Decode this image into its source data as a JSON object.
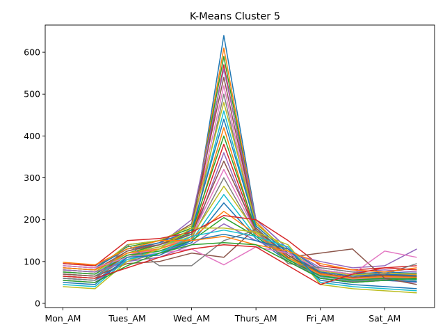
{
  "chart_data": {
    "type": "line",
    "title": "K-Means Cluster 5",
    "xlabel": "",
    "ylabel": "",
    "x": [
      0,
      1,
      2,
      3,
      4,
      5,
      6,
      7,
      8,
      9,
      10,
      11
    ],
    "x_tick_positions": [
      0,
      2,
      4,
      6,
      8,
      10
    ],
    "x_tick_labels": [
      "Mon_AM",
      "Tues_AM",
      "Wed_AM",
      "Thurs_AM",
      "Fri_AM",
      "Sat_AM"
    ],
    "xlim": [
      -0.55,
      11.55
    ],
    "ylim": [
      -10,
      665
    ],
    "y_ticks": [
      0,
      100,
      200,
      300,
      400,
      500,
      600
    ],
    "grid": false,
    "legend": "none",
    "colors": [
      "#1f77b4",
      "#ff7f0e",
      "#2ca02c",
      "#d62728",
      "#9467bd",
      "#8c564b",
      "#e377c2",
      "#7f7f7f",
      "#bcbd22",
      "#17becf"
    ],
    "series": [
      {
        "values": [
          85,
          80,
          140,
          150,
          165,
          640,
          200,
          130,
          80,
          70,
          75,
          72
        ]
      },
      {
        "values": [
          75,
          70,
          120,
          140,
          175,
          610,
          195,
          120,
          75,
          65,
          70,
          68
        ]
      },
      {
        "values": [
          90,
          85,
          135,
          150,
          180,
          590,
          190,
          125,
          70,
          60,
          65,
          60
        ]
      },
      {
        "values": [
          65,
          60,
          110,
          130,
          160,
          570,
          180,
          115,
          65,
          55,
          60,
          58
        ]
      },
      {
        "values": [
          95,
          90,
          130,
          140,
          200,
          560,
          200,
          130,
          85,
          75,
          80,
          75
        ]
      },
      {
        "values": [
          80,
          75,
          125,
          145,
          190,
          540,
          185,
          120,
          72,
          62,
          68,
          65
        ]
      },
      {
        "values": [
          70,
          65,
          115,
          135,
          170,
          520,
          175,
          110,
          68,
          58,
          62,
          60
        ]
      },
      {
        "values": [
          60,
          55,
          100,
          120,
          155,
          500,
          170,
          105,
          60,
          52,
          55,
          52
        ]
      },
      {
        "values": [
          85,
          80,
          140,
          150,
          185,
          480,
          190,
          125,
          78,
          68,
          72,
          70
        ]
      },
      {
        "values": [
          75,
          70,
          120,
          135,
          165,
          460,
          180,
          115,
          70,
          60,
          65,
          62
        ]
      },
      {
        "values": [
          90,
          85,
          130,
          145,
          175,
          440,
          185,
          120,
          75,
          65,
          70,
          66
        ]
      },
      {
        "values": [
          65,
          60,
          110,
          130,
          160,
          420,
          170,
          110,
          65,
          55,
          60,
          56
        ]
      },
      {
        "values": [
          80,
          75,
          120,
          140,
          170,
          400,
          175,
          115,
          70,
          60,
          65,
          62
        ]
      },
      {
        "values": [
          70,
          65,
          115,
          130,
          160,
          380,
          170,
          110,
          66,
          56,
          60,
          58
        ]
      },
      {
        "values": [
          55,
          50,
          105,
          120,
          150,
          360,
          165,
          105,
          60,
          50,
          55,
          50
        ]
      },
      {
        "values": [
          85,
          80,
          125,
          140,
          165,
          340,
          175,
          115,
          72,
          62,
          66,
          64
        ]
      },
      {
        "values": [
          75,
          70,
          115,
          130,
          160,
          320,
          170,
          110,
          68,
          58,
          62,
          60
        ]
      },
      {
        "values": [
          65,
          60,
          110,
          125,
          155,
          300,
          165,
          105,
          64,
          54,
          58,
          55
        ]
      },
      {
        "values": [
          80,
          75,
          120,
          135,
          160,
          280,
          170,
          110,
          70,
          60,
          64,
          62
        ]
      },
      {
        "values": [
          70,
          65,
          110,
          125,
          150,
          260,
          160,
          105,
          65,
          55,
          60,
          56
        ]
      },
      {
        "values": [
          60,
          55,
          105,
          120,
          145,
          240,
          155,
          100,
          60,
          50,
          55,
          52
        ]
      },
      {
        "values": [
          85,
          80,
          120,
          130,
          155,
          220,
          165,
          108,
          70,
          60,
          64,
          62
        ]
      },
      {
        "values": [
          75,
          70,
          115,
          125,
          150,
          205,
          160,
          104,
          66,
          56,
          60,
          58
        ]
      },
      {
        "values": [
          95,
          90,
          150,
          155,
          170,
          210,
          200,
          150,
          90,
          80,
          85,
          90
        ]
      },
      {
        "values": [
          80,
          75,
          100,
          110,
          140,
          190,
          150,
          120,
          100,
          85,
          90,
          130
        ]
      },
      {
        "values": [
          70,
          65,
          95,
          100,
          120,
          110,
          180,
          110,
          120,
          130,
          60,
          45
        ]
      },
      {
        "values": [
          90,
          85,
          110,
          120,
          130,
          92,
          135,
          120,
          80,
          70,
          125,
          110
        ]
      },
      {
        "values": [
          60,
          55,
          140,
          90,
          90,
          150,
          175,
          95,
          85,
          75,
          70,
          95
        ]
      },
      {
        "values": [
          40,
          35,
          100,
          130,
          180,
          180,
          170,
          140,
          45,
          35,
          30,
          25
        ]
      },
      {
        "values": [
          45,
          40,
          105,
          120,
          160,
          175,
          160,
          135,
          50,
          40,
          35,
          30
        ]
      },
      {
        "values": [
          50,
          45,
          110,
          115,
          150,
          165,
          150,
          130,
          55,
          45,
          40,
          35
        ]
      },
      {
        "values": [
          98,
          92,
          130,
          150,
          150,
          160,
          140,
          125,
          95,
          80,
          75,
          85
        ]
      },
      {
        "values": [
          55,
          50,
          90,
          120,
          140,
          145,
          140,
          100,
          60,
          50,
          55,
          60
        ]
      },
      {
        "values": [
          65,
          60,
          85,
          110,
          130,
          140,
          135,
          90,
          45,
          70,
          85,
          80
        ]
      }
    ]
  }
}
